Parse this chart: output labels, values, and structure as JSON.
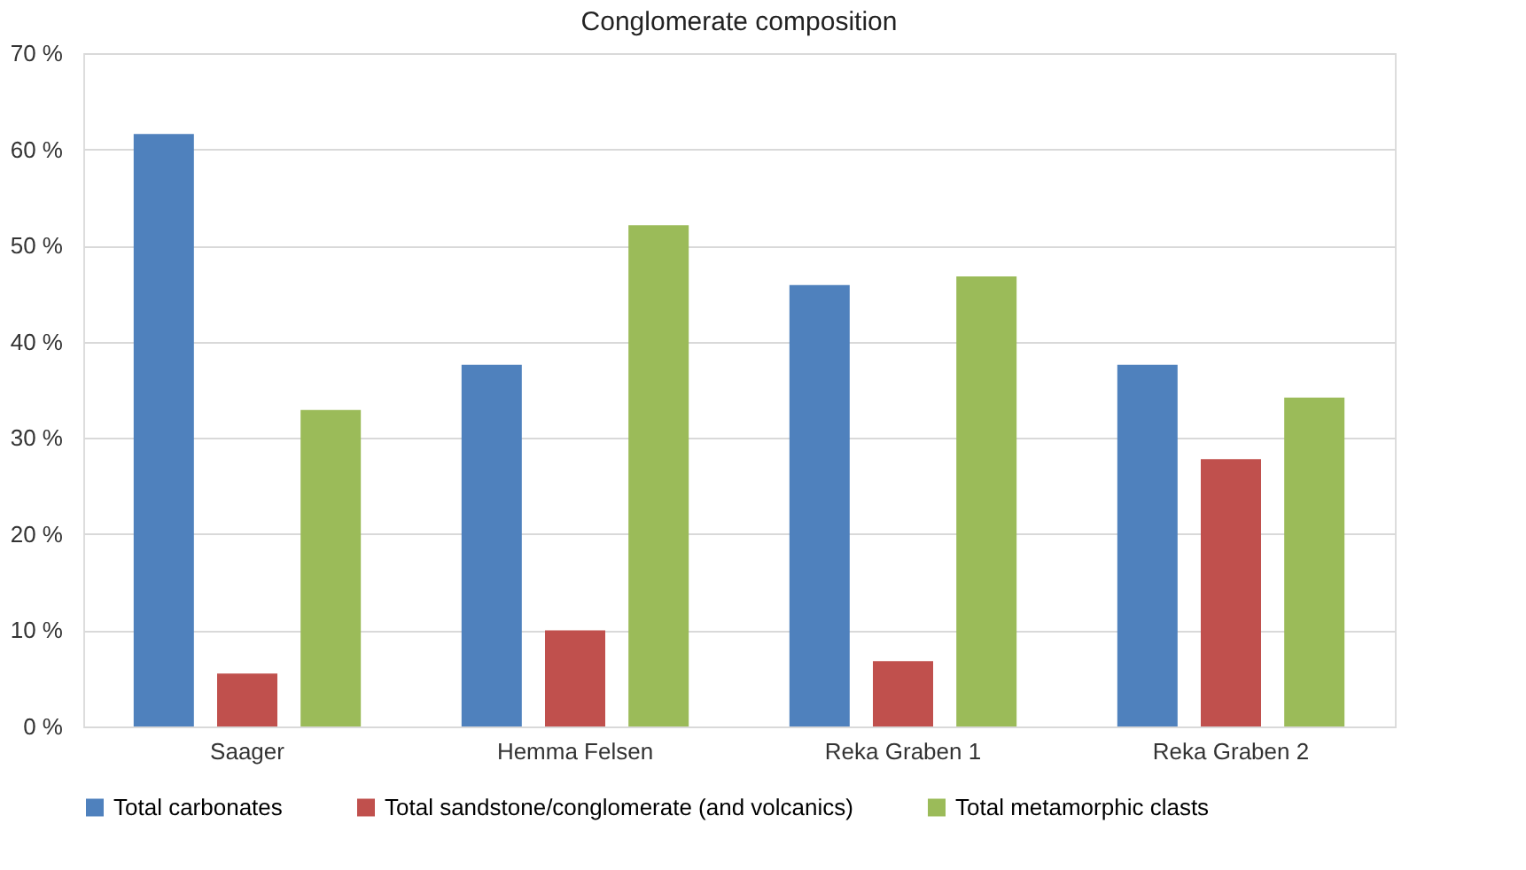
{
  "chart_data": {
    "type": "bar",
    "title": "Conglomerate composition",
    "categories": [
      "Saager",
      "Hemma Felsen",
      "Reka Graben 1",
      "Reka Graben 2"
    ],
    "series": [
      {
        "name": "Total carbonates",
        "color": "#4f81bd",
        "values": [
          61.6,
          37.6,
          45.9,
          37.6
        ]
      },
      {
        "name": "Total sandstone/conglomerate (and volcanics)",
        "color": "#c0504d",
        "values": [
          5.5,
          10,
          6.8,
          27.8
        ]
      },
      {
        "name": "Total metamorphic clasts",
        "color": "#9bbb59",
        "values": [
          32.9,
          52.1,
          46.8,
          34.2
        ]
      }
    ],
    "ylim": [
      0,
      70
    ],
    "yticks": [
      {
        "value": 0,
        "label": "0 %"
      },
      {
        "value": 10,
        "label": "10 %"
      },
      {
        "value": 20,
        "label": "20 %"
      },
      {
        "value": 30,
        "label": "30 %"
      },
      {
        "value": 40,
        "label": "40 %"
      },
      {
        "value": 50,
        "label": "50 %"
      },
      {
        "value": 60,
        "label": "60 %"
      },
      {
        "value": 70,
        "label": "70 %"
      }
    ],
    "grid": "y",
    "legend": "bottom"
  }
}
